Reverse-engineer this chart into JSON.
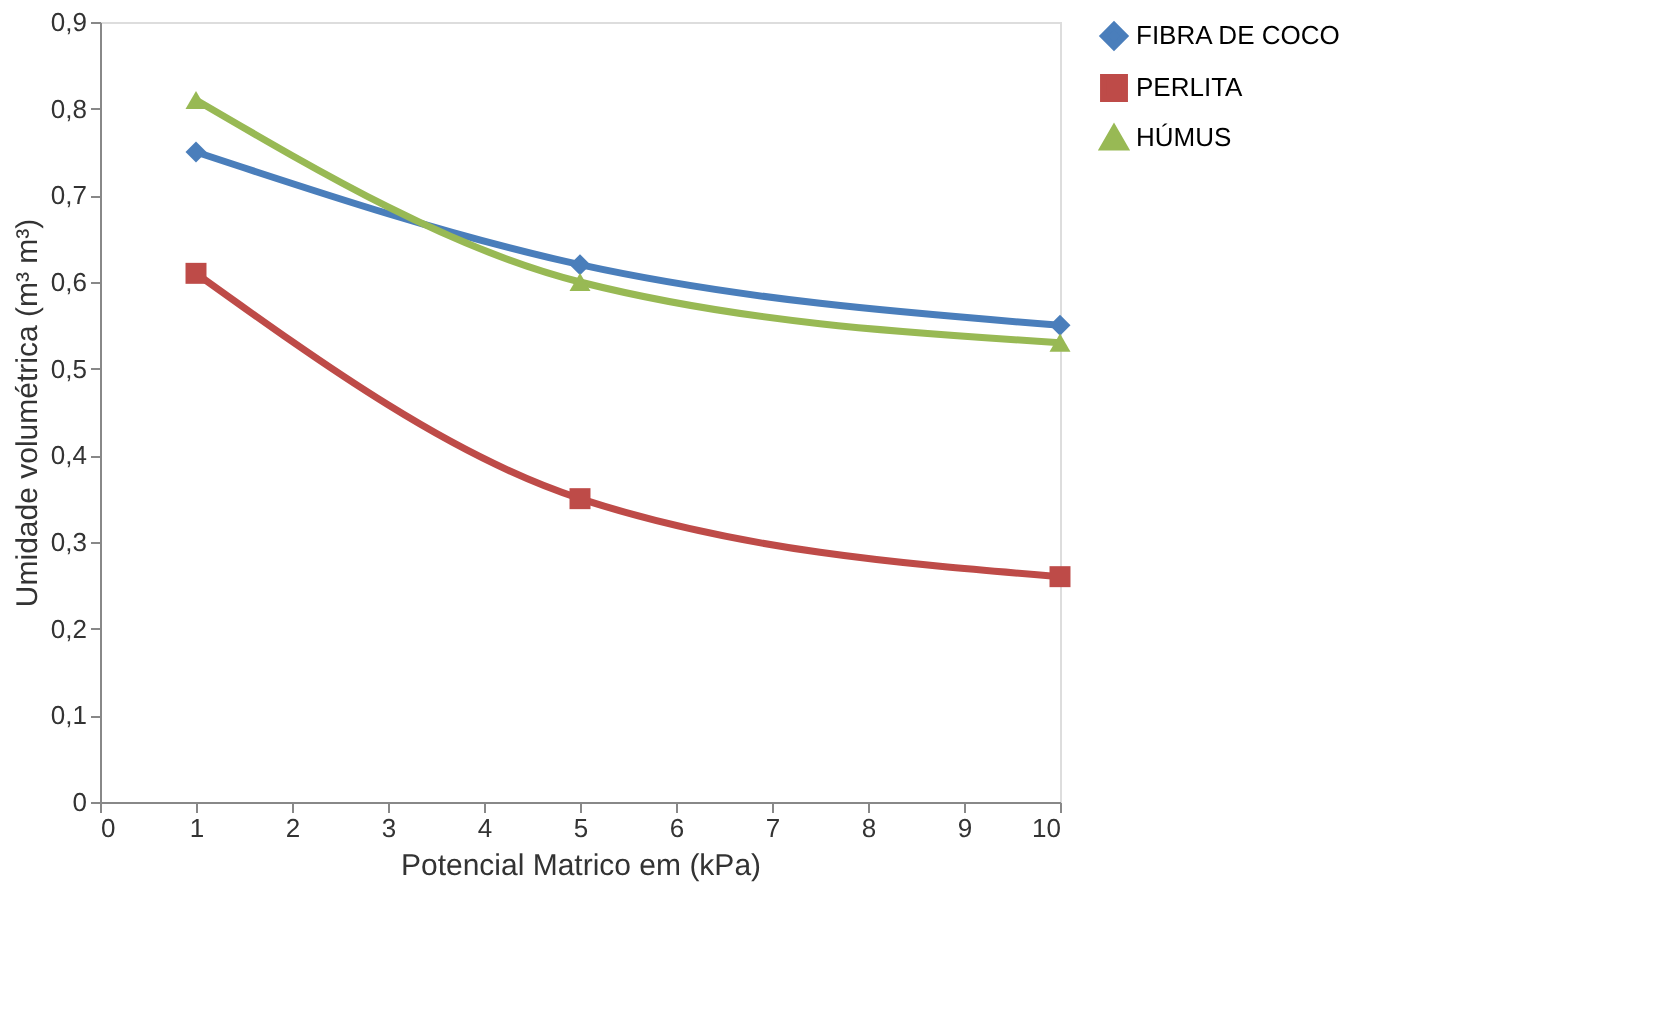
{
  "chart_data": {
    "type": "line",
    "xlabel": "Potencial Matrico em (kPa)",
    "ylabel": "Umidade volumétrica  (m³ m³)",
    "x": [
      1,
      5,
      10
    ],
    "series": [
      {
        "name": "FIBRA DE COCO",
        "color": "#4a7ebb",
        "marker": "diamond",
        "values": [
          0.75,
          0.62,
          0.55
        ]
      },
      {
        "name": "PERLITA",
        "color": "#be4b48",
        "marker": "square",
        "values": [
          0.61,
          0.35,
          0.26
        ]
      },
      {
        "name": "HÚMUS",
        "color": "#98b954",
        "marker": "triangle",
        "values": [
          0.81,
          0.6,
          0.53
        ]
      }
    ],
    "xlim": [
      0,
      10
    ],
    "xticks": [
      0,
      1,
      2,
      3,
      4,
      5,
      6,
      7,
      8,
      9,
      10
    ],
    "ylim": [
      0,
      0.9
    ],
    "yticks": [
      {
        "value": 0,
        "label": "0"
      },
      {
        "value": 0.1,
        "label": "0,1"
      },
      {
        "value": 0.2,
        "label": "0,2"
      },
      {
        "value": 0.3,
        "label": "0,3"
      },
      {
        "value": 0.4,
        "label": "0,4"
      },
      {
        "value": 0.5,
        "label": "0,5"
      },
      {
        "value": 0.6,
        "label": "0,6"
      },
      {
        "value": 0.7,
        "label": "0,7"
      },
      {
        "value": 0.8,
        "label": "0,8"
      },
      {
        "value": 0.9,
        "label": "0,9"
      }
    ],
    "grid": false,
    "legend": "right",
    "line_style": "solid"
  }
}
